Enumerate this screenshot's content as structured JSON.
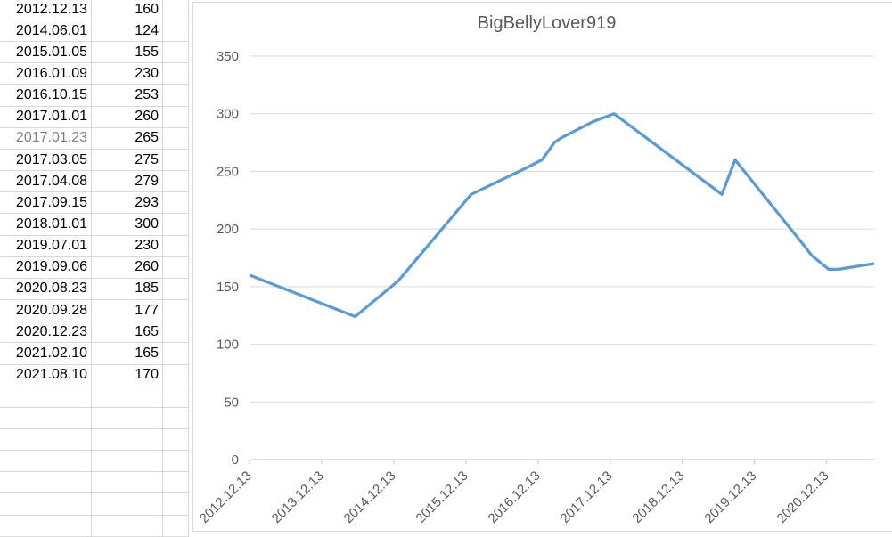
{
  "table": {
    "rows": [
      {
        "date": "2012.12.13",
        "value": "160"
      },
      {
        "date": "2014.06.01",
        "value": "124"
      },
      {
        "date": "2015.01.05",
        "value": "155"
      },
      {
        "date": "2016.01.09",
        "value": "230"
      },
      {
        "date": "2016.10.15",
        "value": "253"
      },
      {
        "date": "2017.01.01",
        "value": "260"
      },
      {
        "date": "2017.01.23",
        "value": "265",
        "muted_date": true
      },
      {
        "date": "2017.03.05",
        "value": "275"
      },
      {
        "date": "2017.04.08",
        "value": "279"
      },
      {
        "date": "2017.09.15",
        "value": "293"
      },
      {
        "date": "2018.01.01",
        "value": "300"
      },
      {
        "date": "2019.07.01",
        "value": "230"
      },
      {
        "date": "2019.09.06",
        "value": "260"
      },
      {
        "date": "2020.08.23",
        "value": "185"
      },
      {
        "date": "2020.09.28",
        "value": "177"
      },
      {
        "date": "2020.12.23",
        "value": "165"
      },
      {
        "date": "2021.02.10",
        "value": "165"
      },
      {
        "date": "2021.08.10",
        "value": "170"
      }
    ],
    "empty_row_count": 7
  },
  "chart_data": {
    "type": "line",
    "title": "BigBellyLover919",
    "x": [
      "2012.12.13",
      "2014.06.01",
      "2015.01.05",
      "2016.01.09",
      "2016.10.15",
      "2017.01.01",
      "2017.01.23",
      "2017.03.05",
      "2017.04.08",
      "2017.09.15",
      "2018.01.01",
      "2019.07.01",
      "2019.09.06",
      "2020.08.23",
      "2020.09.28",
      "2020.12.23",
      "2021.02.10",
      "2021.08.10"
    ],
    "values": [
      160,
      124,
      155,
      230,
      253,
      260,
      265,
      275,
      279,
      293,
      300,
      230,
      260,
      185,
      177,
      165,
      165,
      170
    ],
    "x_tick_labels": [
      "2012.12.13",
      "2013.12.13",
      "2014.12.13",
      "2015.12.13",
      "2016.12.13",
      "2017.12.13",
      "2018.12.13",
      "2019.12.13",
      "2020.12.13"
    ],
    "y_ticks": [
      0,
      50,
      100,
      150,
      200,
      250,
      300,
      350
    ],
    "ylim": [
      0,
      350
    ],
    "grid": true,
    "legend": false,
    "xlabel": "",
    "ylabel": ""
  },
  "colors": {
    "line": "#5B9BD5",
    "gridline": "#d9d9d9",
    "axis_line": "#bfbfbf",
    "tick_mark": "#bfbfbf",
    "label_text": "#595959",
    "table_border": "#d9d9d9",
    "cell_text": "#000000",
    "muted_cell_text": "#808080"
  }
}
